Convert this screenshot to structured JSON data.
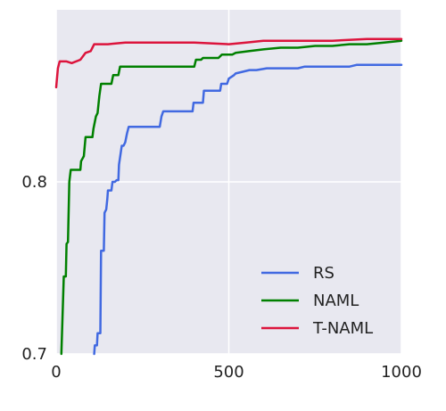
{
  "chart_data": {
    "type": "line",
    "title": "",
    "xlabel": "",
    "ylabel": "",
    "xlim": [
      0,
      1000
    ],
    "ylim": [
      0.7,
      0.9
    ],
    "x_ticks": [
      {
        "value": 0,
        "label": "0"
      },
      {
        "value": 500,
        "label": "500"
      },
      {
        "value": 1000,
        "label": "1000"
      }
    ],
    "y_ticks": [
      {
        "value": 0.7,
        "label": "0.7"
      },
      {
        "value": 0.8,
        "label": "0.8"
      }
    ],
    "grid": true,
    "background": "#e8e8f0",
    "grid_color": "#ffffff",
    "legend_position": "lower-right",
    "series": [
      {
        "name": "RS",
        "color": "#4169e1",
        "points": [
          [
            110,
            0.7
          ],
          [
            112,
            0.705
          ],
          [
            118,
            0.705
          ],
          [
            120,
            0.712
          ],
          [
            128,
            0.712
          ],
          [
            130,
            0.76
          ],
          [
            138,
            0.76
          ],
          [
            140,
            0.782
          ],
          [
            145,
            0.784
          ],
          [
            148,
            0.79
          ],
          [
            150,
            0.795
          ],
          [
            160,
            0.795
          ],
          [
            163,
            0.8
          ],
          [
            170,
            0.8
          ],
          [
            175,
            0.801
          ],
          [
            180,
            0.801
          ],
          [
            182,
            0.81
          ],
          [
            190,
            0.821
          ],
          [
            195,
            0.821
          ],
          [
            200,
            0.823
          ],
          [
            205,
            0.828
          ],
          [
            210,
            0.832
          ],
          [
            240,
            0.832
          ],
          [
            300,
            0.832
          ],
          [
            305,
            0.838
          ],
          [
            310,
            0.841
          ],
          [
            395,
            0.841
          ],
          [
            398,
            0.846
          ],
          [
            425,
            0.846
          ],
          [
            428,
            0.853
          ],
          [
            475,
            0.853
          ],
          [
            478,
            0.857
          ],
          [
            495,
            0.857
          ],
          [
            500,
            0.86
          ],
          [
            515,
            0.862
          ],
          [
            520,
            0.863
          ],
          [
            540,
            0.864
          ],
          [
            560,
            0.865
          ],
          [
            580,
            0.865
          ],
          [
            610,
            0.866
          ],
          [
            700,
            0.866
          ],
          [
            720,
            0.867
          ],
          [
            850,
            0.867
          ],
          [
            870,
            0.868
          ],
          [
            1000,
            0.868
          ]
        ]
      },
      {
        "name": "NAML",
        "color": "#008000",
        "points": [
          [
            15,
            0.7
          ],
          [
            18,
            0.72
          ],
          [
            22,
            0.745
          ],
          [
            28,
            0.745
          ],
          [
            30,
            0.764
          ],
          [
            34,
            0.765
          ],
          [
            38,
            0.8
          ],
          [
            42,
            0.807
          ],
          [
            70,
            0.807
          ],
          [
            72,
            0.812
          ],
          [
            80,
            0.815
          ],
          [
            85,
            0.826
          ],
          [
            100,
            0.826
          ],
          [
            105,
            0.826
          ],
          [
            108,
            0.831
          ],
          [
            115,
            0.838
          ],
          [
            120,
            0.84
          ],
          [
            125,
            0.85
          ],
          [
            130,
            0.857
          ],
          [
            160,
            0.857
          ],
          [
            165,
            0.862
          ],
          [
            180,
            0.862
          ],
          [
            185,
            0.867
          ],
          [
            210,
            0.867
          ],
          [
            400,
            0.867
          ],
          [
            405,
            0.871
          ],
          [
            420,
            0.871
          ],
          [
            425,
            0.872
          ],
          [
            470,
            0.872
          ],
          [
            480,
            0.874
          ],
          [
            510,
            0.874
          ],
          [
            520,
            0.875
          ],
          [
            560,
            0.876
          ],
          [
            600,
            0.877
          ],
          [
            650,
            0.878
          ],
          [
            700,
            0.878
          ],
          [
            750,
            0.879
          ],
          [
            800,
            0.879
          ],
          [
            850,
            0.88
          ],
          [
            900,
            0.88
          ],
          [
            950,
            0.881
          ],
          [
            1000,
            0.882
          ]
        ]
      },
      {
        "name": "T-NAML",
        "color": "#dc143c",
        "points": [
          [
            0,
            0.855
          ],
          [
            5,
            0.866
          ],
          [
            10,
            0.87
          ],
          [
            30,
            0.87
          ],
          [
            45,
            0.869
          ],
          [
            70,
            0.871
          ],
          [
            85,
            0.875
          ],
          [
            100,
            0.876
          ],
          [
            110,
            0.88
          ],
          [
            150,
            0.88
          ],
          [
            200,
            0.881
          ],
          [
            300,
            0.881
          ],
          [
            400,
            0.881
          ],
          [
            500,
            0.88
          ],
          [
            550,
            0.881
          ],
          [
            600,
            0.882
          ],
          [
            700,
            0.882
          ],
          [
            800,
            0.882
          ],
          [
            900,
            0.883
          ],
          [
            1000,
            0.883
          ]
        ]
      }
    ]
  }
}
